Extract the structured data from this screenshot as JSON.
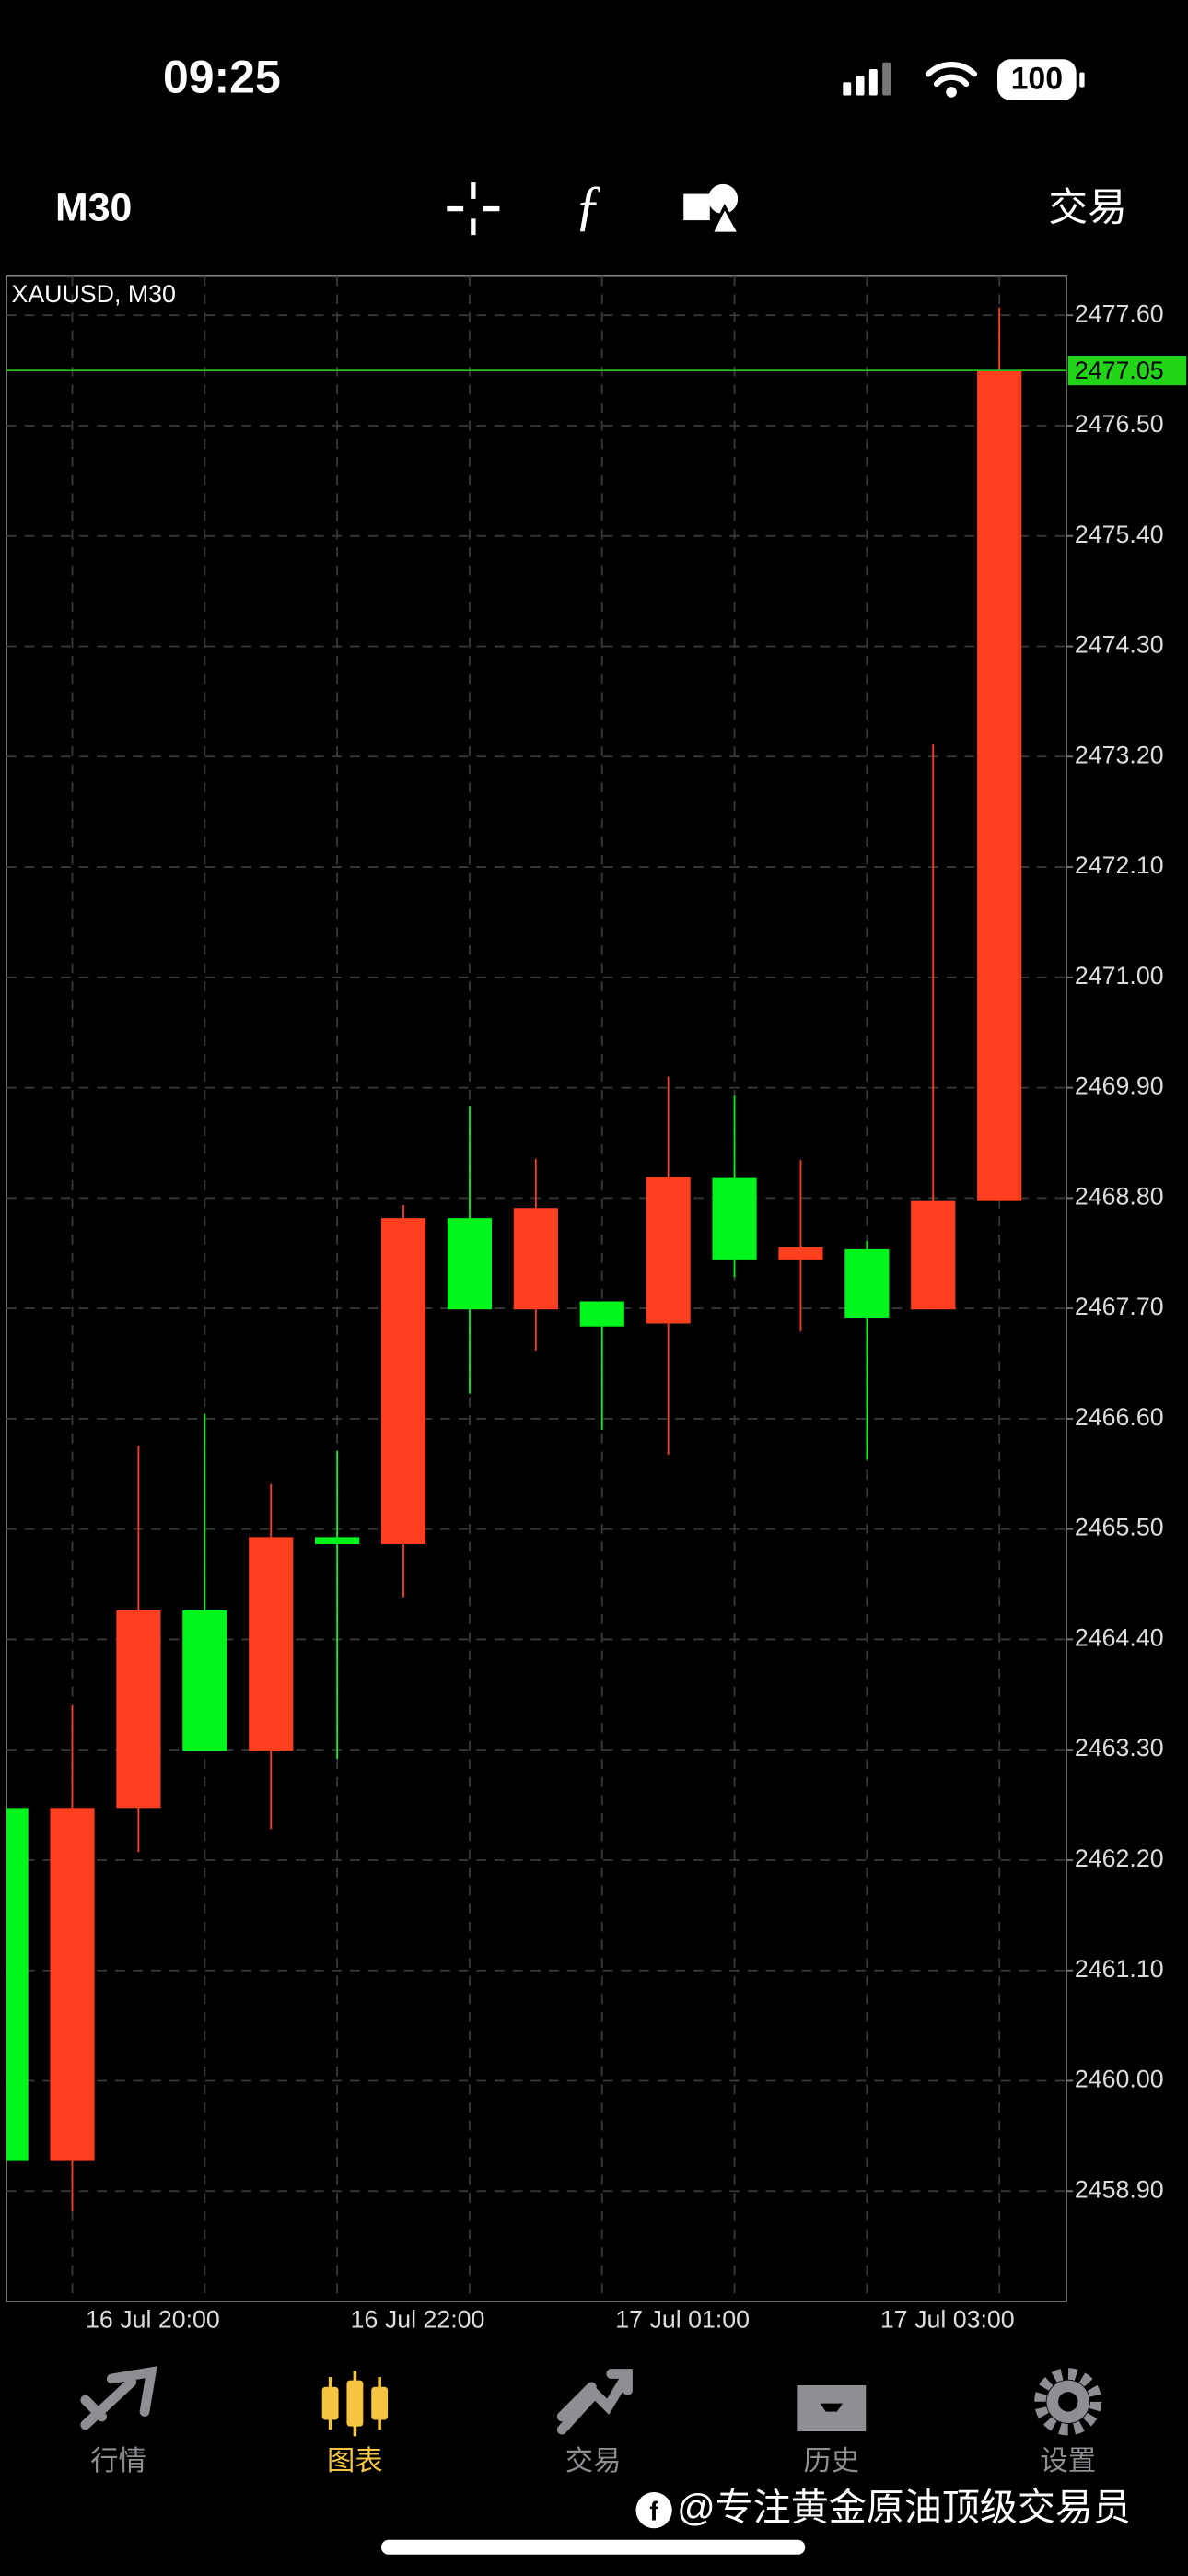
{
  "status_bar": {
    "time": "09:25",
    "battery": "100"
  },
  "toolbar": {
    "timeframe": "M30",
    "trade": "交易"
  },
  "chart_data": {
    "type": "candlestick",
    "title": "XAUUSD, M30",
    "categories": [
      null,
      "16 Jul 20:00",
      null,
      null,
      null,
      "16 Jul 22:00",
      null,
      null,
      null,
      "17 Jul 01:00",
      null,
      null,
      null,
      "17 Jul 03:00",
      null,
      null
    ],
    "open": [
      2462.72,
      2459.2,
      2462.72,
      2464.69,
      2463.29,
      2465.42,
      2465.35,
      2468.6,
      2467.69,
      2467.77,
      2467.55,
      2469.0,
      2468.18,
      2468.29,
      2467.69,
      2468.77
    ],
    "high": [
      2462.72,
      2463.74,
      2466.33,
      2466.65,
      2465.95,
      2466.28,
      2468.73,
      2469.72,
      2469.19,
      2467.77,
      2470.01,
      2469.82,
      2469.18,
      2468.37,
      2473.32,
      2477.68
    ],
    "low": [
      2459.2,
      2458.7,
      2462.28,
      2463.29,
      2462.51,
      2463.21,
      2464.82,
      2466.85,
      2467.28,
      2466.49,
      2466.24,
      2468.01,
      2467.47,
      2466.19,
      2467.69,
      2468.77
    ],
    "close": [
      2459.2,
      2462.72,
      2464.69,
      2463.29,
      2465.42,
      2465.35,
      2468.6,
      2467.69,
      2468.7,
      2467.52,
      2469.01,
      2468.18,
      2468.31,
      2467.6,
      2468.77,
      2477.05
    ],
    "up_color": "#ff4020",
    "down_color": "#00f51c",
    "ylim": [
      2457.8,
      2477.99
    ],
    "yticks": [
      {
        "value": 2477.6,
        "label": "2477.60"
      },
      {
        "value": 2476.5,
        "label": "2476.50"
      },
      {
        "value": 2475.4,
        "label": "2475.40"
      },
      {
        "value": 2474.3,
        "label": "2474.30"
      },
      {
        "value": 2473.2,
        "label": "2473.20"
      },
      {
        "value": 2472.1,
        "label": "2472.10"
      },
      {
        "value": 2471,
        "label": "2471.00"
      },
      {
        "value": 2469.9,
        "label": "2469.90"
      },
      {
        "value": 2468.8,
        "label": "2468.80"
      },
      {
        "value": 2467.7,
        "label": "2467.70"
      },
      {
        "value": 2466.6,
        "label": "2466.60"
      },
      {
        "value": 2465.5,
        "label": "2465.50"
      },
      {
        "value": 2464.4,
        "label": "2464.40"
      },
      {
        "value": 2463.3,
        "label": "2463.30"
      },
      {
        "value": 2462.2,
        "label": "2462.20"
      },
      {
        "value": 2461.1,
        "label": "2461.10"
      },
      {
        "value": 2460,
        "label": "2460.00"
      },
      {
        "value": 2458.9,
        "label": "2458.90"
      }
    ],
    "current_price": {
      "value": 2477.05,
      "label": "2477.05"
    },
    "grid": true
  },
  "nav": {
    "items": [
      "行情",
      "图表",
      "交易",
      "历史",
      "设置"
    ],
    "active": 1
  },
  "watermark": "@专注黄金原油顶级交易员"
}
